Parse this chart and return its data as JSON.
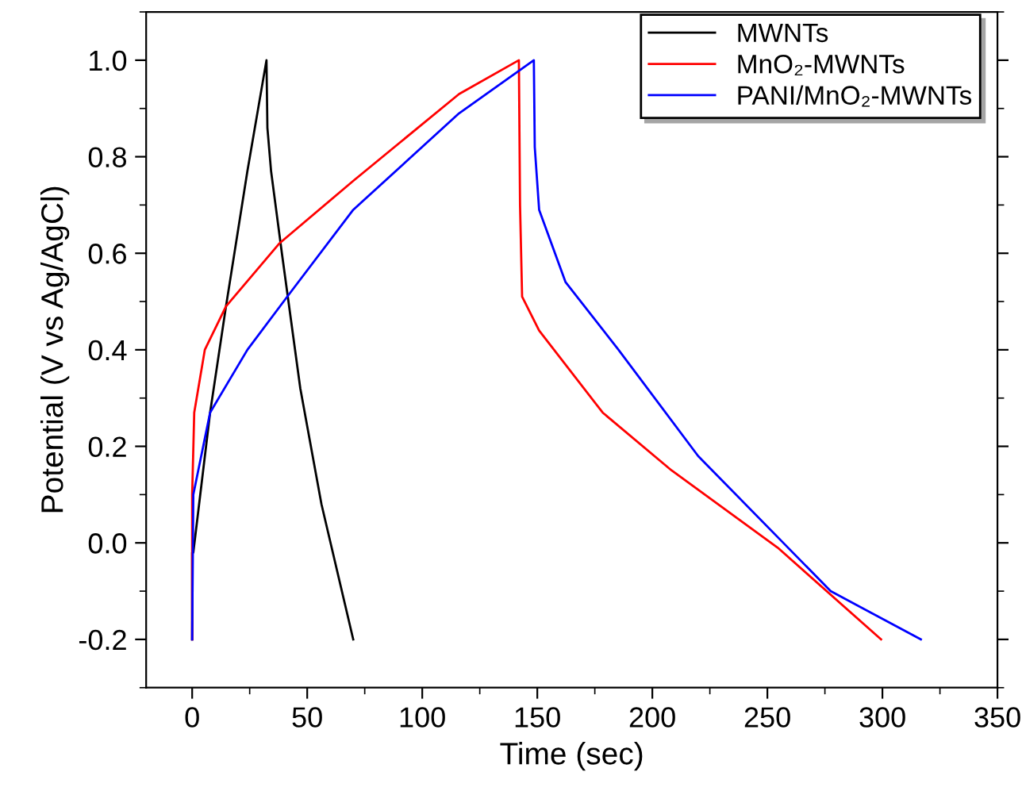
{
  "chart_data": {
    "type": "line",
    "xlabel": "Time (sec)",
    "ylabel": "Potential (V vs Ag/AgCl)",
    "xlim": [
      -20,
      350
    ],
    "ylim": [
      -0.3,
      1.1
    ],
    "xticks": [
      0,
      50,
      100,
      150,
      200,
      250,
      300,
      350
    ],
    "yticks": [
      -0.2,
      {
        "value": 0,
        "label": "0.0"
      },
      0.2,
      0.4,
      0.6,
      0.8,
      {
        "value": 1,
        "label": "1.0"
      }
    ],
    "grid": false,
    "legend": "top right",
    "marker": "none",
    "line_style": "solid",
    "series": [
      {
        "name": "MWNTs",
        "color": "#000000",
        "x": [
          0,
          0,
          0.5,
          7.8,
          14.7,
          24,
          32.3,
          32.7,
          34.3,
          39,
          47,
          56.2,
          70
        ],
        "values": [
          -0.2,
          -0.02,
          -0.02,
          0.27,
          0.49,
          0.77,
          1.0,
          0.86,
          0.77,
          0.6,
          0.32,
          0.08,
          -0.2
        ]
      },
      {
        "name": "MnO₂-MWNTs",
        "color": "#ff0000",
        "x": [
          0,
          0,
          0.9,
          5.5,
          14.7,
          37.8,
          70,
          116,
          142,
          142.5,
          143.4,
          150.8,
          178.4,
          208.4,
          254.5,
          299.4
        ],
        "values": [
          -0.2,
          0.1,
          0.27,
          0.4,
          0.49,
          0.62,
          0.75,
          0.93,
          1.0,
          0.7,
          0.51,
          0.44,
          0.27,
          0.15,
          -0.01,
          -0.2
        ]
      },
      {
        "name": "PANI/MnO₂-MWNTs",
        "color": "#0000ff",
        "x": [
          0,
          0.5,
          7.8,
          24,
          41.3,
          70,
          116,
          148.5,
          148.9,
          150.8,
          162.3,
          185.3,
          219.9,
          277.5,
          316.7
        ],
        "values": [
          -0.2,
          0.1,
          0.27,
          0.4,
          0.51,
          0.69,
          0.89,
          1.0,
          0.82,
          0.69,
          0.54,
          0.4,
          0.18,
          -0.1,
          -0.2
        ]
      }
    ]
  }
}
